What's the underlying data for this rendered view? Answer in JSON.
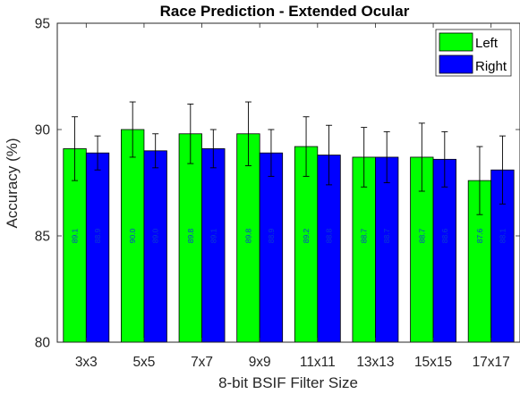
{
  "chart_data": {
    "type": "bar",
    "title": "Race Prediction - Extended Ocular",
    "xlabel": "8-bit BSIF Filter Size",
    "ylabel": "Accuracy (%)",
    "ylim": [
      80,
      95
    ],
    "yticks": [
      80,
      85,
      90,
      95
    ],
    "categories": [
      "3x3",
      "5x5",
      "7x7",
      "9x9",
      "11x11",
      "13x13",
      "15x15",
      "17x17"
    ],
    "series": [
      {
        "name": "Left",
        "color": "#00ff00",
        "values": [
          89.1,
          90.0,
          89.8,
          89.8,
          89.2,
          88.7,
          88.7,
          87.6
        ],
        "labels": [
          "89.1",
          "90.0",
          "89.8",
          "89.8",
          "89.2",
          "88.7",
          "88.7",
          "87.6"
        ],
        "error_low": [
          87.6,
          88.7,
          88.4,
          88.3,
          87.8,
          87.3,
          87.1,
          86.0
        ],
        "error_high": [
          90.6,
          91.3,
          91.2,
          91.3,
          90.6,
          90.1,
          90.3,
          89.2
        ]
      },
      {
        "name": "Right",
        "color": "#0000ff",
        "values": [
          88.9,
          89.0,
          89.1,
          88.9,
          88.8,
          88.7,
          88.6,
          88.1
        ],
        "labels": [
          "88.9",
          "89.0",
          "89.1",
          "88.9",
          "88.8",
          "88.7",
          "88.6",
          "88.1"
        ],
        "error_low": [
          88.1,
          88.2,
          88.2,
          87.8,
          87.4,
          87.5,
          87.3,
          86.5
        ],
        "error_high": [
          89.7,
          89.8,
          90.0,
          90.0,
          90.2,
          89.9,
          89.9,
          89.7
        ]
      }
    ],
    "legend_position": "top-right",
    "grid": false
  }
}
